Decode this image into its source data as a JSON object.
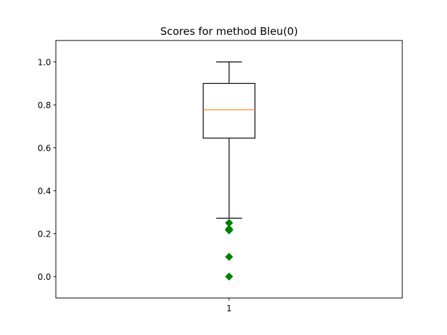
{
  "chart_data": {
    "type": "box",
    "title": "Scores for method Bleu(0)",
    "xlabel": "",
    "ylabel": "",
    "categories": [
      "1"
    ],
    "ylim": [
      -0.1,
      1.1
    ],
    "yticks": [
      0.0,
      0.2,
      0.4,
      0.6,
      0.8,
      1.0
    ],
    "ytick_labels": [
      "0.0",
      "0.2",
      "0.4",
      "0.6",
      "0.8",
      "1.0"
    ],
    "grid": false,
    "boxes": [
      {
        "label": "1",
        "whisker_low": 0.272,
        "q1": 0.645,
        "median": 0.777,
        "q3": 0.9,
        "whisker_high": 1.0,
        "outliers": [
          0.25,
          0.222,
          0.218,
          0.215,
          0.092,
          0.0
        ]
      }
    ],
    "colors": {
      "box": "#000000",
      "median": "#ff7f0e",
      "outlier": "#008000"
    }
  }
}
